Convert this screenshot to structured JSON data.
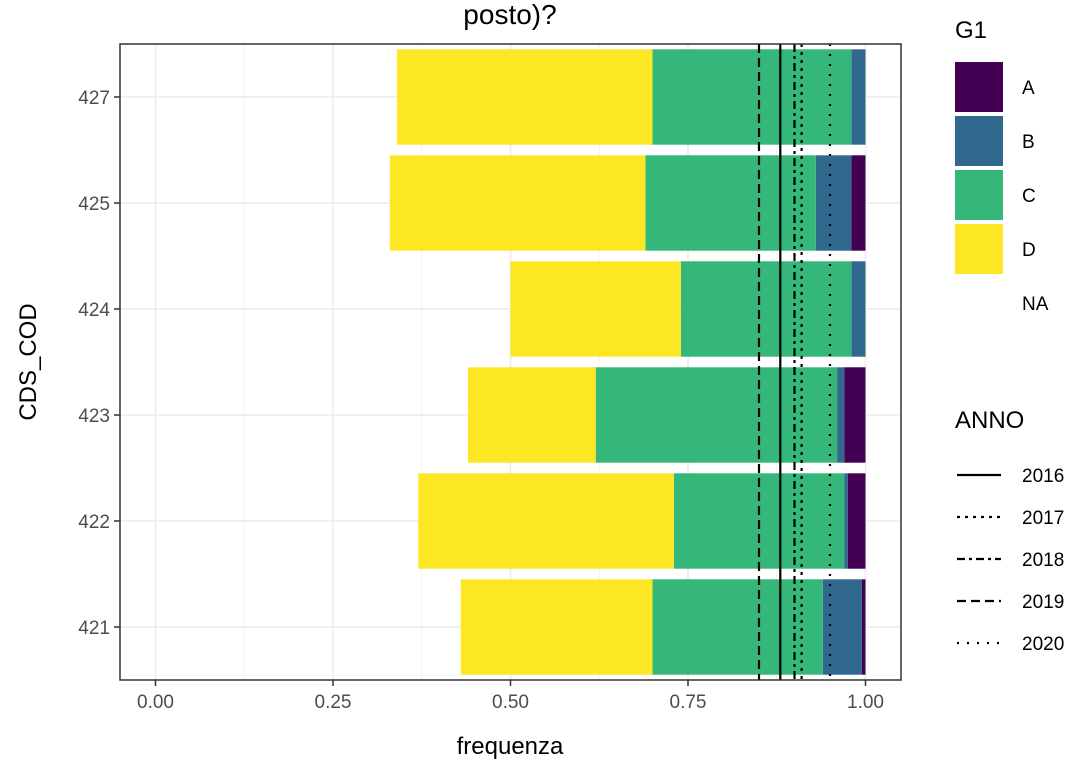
{
  "chart_data": {
    "type": "bar",
    "orientation": "horizontal",
    "stacked": true,
    "title": "posto)?",
    "xlabel": "frequenza",
    "ylabel": "CDS_COD",
    "xlim": [
      -0.05,
      1.05
    ],
    "x_ticks": [
      "0.00",
      "0.25",
      "0.50",
      "0.75",
      "1.00"
    ],
    "grid": true,
    "categories": [
      "427",
      "425",
      "424",
      "423",
      "422",
      "421"
    ],
    "series": [
      {
        "name": "D",
        "color": "#FDE725",
        "values": [
          0.36,
          0.36,
          0.24,
          0.18,
          0.36,
          0.27
        ]
      },
      {
        "name": "C",
        "color": "#35B779",
        "values": [
          0.28,
          0.24,
          0.24,
          0.34,
          0.24,
          0.24
        ]
      },
      {
        "name": "B",
        "color": "#31688E",
        "values": [
          0.02,
          0.05,
          0.02,
          0.01,
          0.005,
          0.055
        ]
      },
      {
        "name": "A",
        "color": "#440154",
        "values": [
          0.0,
          0.02,
          0.0,
          0.03,
          0.025,
          0.005
        ]
      }
    ],
    "legend_fill": {
      "title": "G1",
      "items": [
        {
          "label": "A",
          "color": "#440154"
        },
        {
          "label": "B",
          "color": "#31688E"
        },
        {
          "label": "C",
          "color": "#35B779"
        },
        {
          "label": "D",
          "color": "#FDE725"
        },
        {
          "label": "NA",
          "color": ""
        }
      ]
    },
    "reference_lines": {
      "title": "ANNO",
      "lines": [
        {
          "label": "2016",
          "value": 0.88,
          "dash": "solid"
        },
        {
          "label": "2017",
          "value": 0.91,
          "dash": "dotted"
        },
        {
          "label": "2018",
          "value": 0.9,
          "dash": "dashdot"
        },
        {
          "label": "2019",
          "value": 0.85,
          "dash": "dashed"
        },
        {
          "label": "2020",
          "value": 0.95,
          "dash": "dotted-sparse"
        }
      ]
    }
  }
}
